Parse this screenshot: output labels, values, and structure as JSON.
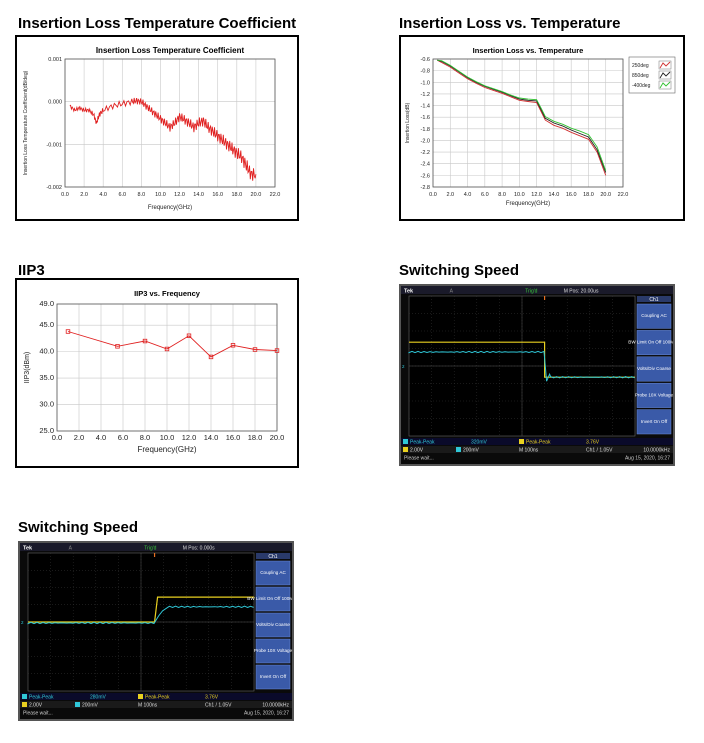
{
  "sections": {
    "ilcoef_title": "Insertion Loss Temperature Coefficient",
    "ilvt_title": "Insertion Loss vs. Temperature",
    "iip3_title": "IIP3",
    "ss1_title": "Switching Speed",
    "ss2_title": "Switching Speed"
  },
  "chart_data": [
    {
      "id": "ilcoef",
      "type": "line",
      "title": "Insertion Loss Temperature Coefficient",
      "xlabel": "Frequency(GHz)",
      "ylabel": "Insertion Loss Temperature Coefficient(dB/deg)",
      "xlim": [
        0,
        22
      ],
      "ylim": [
        -0.002,
        0.001
      ],
      "xticks": [
        "0.0",
        "2.0",
        "4.0",
        "6.0",
        "8.0",
        "10.0",
        "12.0",
        "14.0",
        "16.0",
        "18.0",
        "20.0",
        "22.0"
      ],
      "yticks": [
        "0.001",
        "0.000",
        "-0.001",
        "-0.002"
      ],
      "grid": true,
      "color": "#e02020",
      "x": [
        0.5,
        1.0,
        1.5,
        2.0,
        2.5,
        3.0,
        3.3,
        3.6,
        4.0,
        5.0,
        6.0,
        7.0,
        7.5,
        8.0,
        8.5,
        9.0,
        9.5,
        10.0,
        10.5,
        11.0,
        11.5,
        12.0,
        12.5,
        13.0,
        13.5,
        14.0,
        14.5,
        15.0,
        15.5,
        16.0,
        16.5,
        17.0,
        17.5,
        18.0,
        18.5,
        19.0,
        19.5,
        20.0
      ],
      "y": [
        -0.0001,
        -0.0002,
        -0.00015,
        -0.0002,
        -0.0002,
        -0.0003,
        -0.0005,
        -0.0003,
        -0.0002,
        -0.0001,
        -5e-05,
        0.0,
        2e-05,
        0.0,
        -0.0001,
        -0.0002,
        -0.0003,
        -0.0004,
        -0.0005,
        -0.0006,
        -0.0005,
        -0.00035,
        -0.00042,
        -0.0005,
        -0.0006,
        -0.0005,
        -0.00045,
        -0.0006,
        -0.0007,
        -0.0008,
        -0.0009,
        -0.001,
        -0.0011,
        -0.0012,
        -0.0013,
        -0.0015,
        -0.0017,
        -0.0017
      ]
    },
    {
      "id": "ilvt",
      "type": "line",
      "title": "Insertion Loss vs. Temperature",
      "xlabel": "Frequency(GHz)",
      "ylabel": "Insertion Loss(dB)",
      "xlim": [
        0,
        22
      ],
      "ylim": [
        -2.8,
        -0.6
      ],
      "xticks": [
        "0.0",
        "2.0",
        "4.0",
        "6.0",
        "8.0",
        "10.0",
        "12.0",
        "14.0",
        "16.0",
        "18.0",
        "20.0",
        "22.0"
      ],
      "yticks": [
        "-0.6",
        "-0.8",
        "-1.0",
        "-1.2",
        "-1.4",
        "-1.6",
        "-1.8",
        "-2.0",
        "-2.2",
        "-2.4",
        "-2.6",
        "-2.8"
      ],
      "grid": true,
      "legend_position": "top-right",
      "x": [
        0.5,
        1.0,
        2.0,
        3.0,
        4.0,
        5.0,
        6.0,
        7.0,
        8.0,
        9.0,
        10.0,
        11.0,
        12.0,
        12.5,
        13.0,
        14.0,
        15.0,
        16.0,
        17.0,
        18.0,
        19.0,
        20.0
      ],
      "series": [
        {
          "name": "250deg",
          "color": "#d03030",
          "values": [
            -0.62,
            -0.66,
            -0.74,
            -0.84,
            -0.94,
            -1.02,
            -1.09,
            -1.14,
            -1.19,
            -1.25,
            -1.31,
            -1.33,
            -1.35,
            -1.5,
            -1.65,
            -1.74,
            -1.79,
            -1.86,
            -1.92,
            -1.98,
            -2.2,
            -2.6
          ]
        },
        {
          "name": "850deg",
          "color": "#202020",
          "values": [
            -0.62,
            -0.64,
            -0.72,
            -0.82,
            -0.92,
            -1.0,
            -1.07,
            -1.12,
            -1.17,
            -1.23,
            -1.29,
            -1.31,
            -1.32,
            -1.47,
            -1.62,
            -1.7,
            -1.75,
            -1.82,
            -1.88,
            -1.94,
            -2.16,
            -2.55
          ]
        },
        {
          "name": "-400deg",
          "color": "#30c030",
          "values": [
            -0.62,
            -0.63,
            -0.71,
            -0.81,
            -0.91,
            -0.99,
            -1.06,
            -1.11,
            -1.16,
            -1.22,
            -1.27,
            -1.29,
            -1.3,
            -1.44,
            -1.59,
            -1.67,
            -1.72,
            -1.79,
            -1.84,
            -1.9,
            -2.11,
            -2.52
          ]
        }
      ]
    },
    {
      "id": "iip3",
      "type": "line",
      "title": "IIP3 vs. Frequency",
      "xlabel": "Frequency(GHz)",
      "ylabel": "IIP3(dBm)",
      "xlim": [
        0,
        20
      ],
      "ylim": [
        25,
        49
      ],
      "xticks": [
        "0.0",
        "2.0",
        "4.0",
        "6.0",
        "8.0",
        "10.0",
        "12.0",
        "14.0",
        "16.0",
        "18.0",
        "20.0"
      ],
      "yticks": [
        "49.0",
        "45.0",
        "40.0",
        "35.0",
        "30.0",
        "25.0"
      ],
      "grid": true,
      "color": "#e02020",
      "x": [
        1.0,
        5.5,
        8.0,
        10.0,
        12.0,
        14.0,
        16.0,
        18.0,
        20.0
      ],
      "y": [
        43.8,
        41.0,
        42.0,
        40.5,
        43.0,
        39.0,
        41.2,
        40.4,
        40.2
      ]
    }
  ],
  "scopes": [
    {
      "id": "ss1",
      "tek": "Tek",
      "trig_status": "Trig'd",
      "mpos": "M Pos: 20.00us",
      "ch_header": "Ch1",
      "menu": [
        "Coupling AC",
        "BW Limit On Off 100MHz",
        "Volts/Div Coarse",
        "Probe 10X Voltage",
        "Invert On Off"
      ],
      "meas1_label": "Peak-Peak",
      "meas1_value": "320mV",
      "meas2_label": "Peak-Peak",
      "meas2_value": "3.76V",
      "ch1_scale": "2.00V",
      "ch2_scale": "200mV",
      "time_scale": "M 100ns",
      "trigger": "Ch1 / 1.05V",
      "freq": "10.0000kHz",
      "status": "Please wait...",
      "datetime": "Aug 15, 2020, 16:27"
    },
    {
      "id": "ss2",
      "tek": "Tek",
      "trig_status": "Trig'd",
      "mpos": "M Pos: 0.000s",
      "ch_header": "Ch1",
      "menu": [
        "Coupling AC",
        "BW Limit On Off 100MHz",
        "Volts/Div Coarse",
        "Probe 10X Voltage",
        "Invert On Off"
      ],
      "meas1_label": "Peak-Peak",
      "meas1_value": "280mV",
      "meas2_label": "Peak-Peak",
      "meas2_value": "3.76V",
      "ch1_scale": "2.00V",
      "ch2_scale": "200mV",
      "time_scale": "M 100ns",
      "trigger": "Ch1 / 1.05V",
      "freq": "10.0000kHz",
      "status": "Please wait...",
      "datetime": "Aug 15, 2020, 16:27"
    }
  ]
}
